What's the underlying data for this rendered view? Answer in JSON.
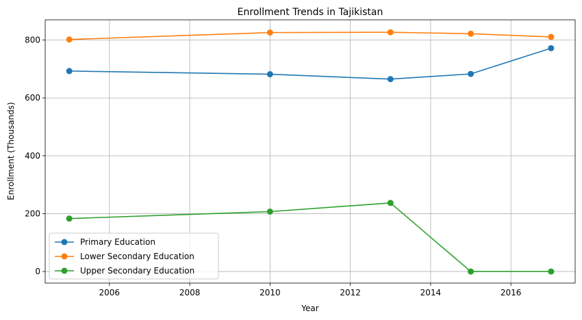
{
  "chart_data": {
    "type": "line",
    "title": "Enrollment Trends in Tajikistan",
    "xlabel": "Year",
    "ylabel": "Enrollment (Thousands)",
    "xlim": [
      2004.4,
      2017.6
    ],
    "ylim": [
      -40,
      870
    ],
    "x_ticks": [
      2006,
      2008,
      2010,
      2012,
      2014,
      2016
    ],
    "y_ticks": [
      0,
      200,
      400,
      600,
      800
    ],
    "grid": true,
    "legend_position": "lower-left",
    "series": [
      {
        "name": "Primary Education",
        "color": "#1f77b4",
        "x": [
          2005,
          2010,
          2013,
          2015,
          2017
        ],
        "y": [
          693,
          682,
          665,
          683,
          772
        ]
      },
      {
        "name": "Lower Secondary Education",
        "color": "#ff7f0e",
        "x": [
          2005,
          2010,
          2013,
          2015,
          2017
        ],
        "y": [
          802,
          826,
          827,
          822,
          811
        ]
      },
      {
        "name": "Upper Secondary Education",
        "color": "#2ca02c",
        "x": [
          2005,
          2010,
          2013,
          2015,
          2017
        ],
        "y": [
          183,
          207,
          237,
          0,
          0
        ]
      }
    ]
  }
}
